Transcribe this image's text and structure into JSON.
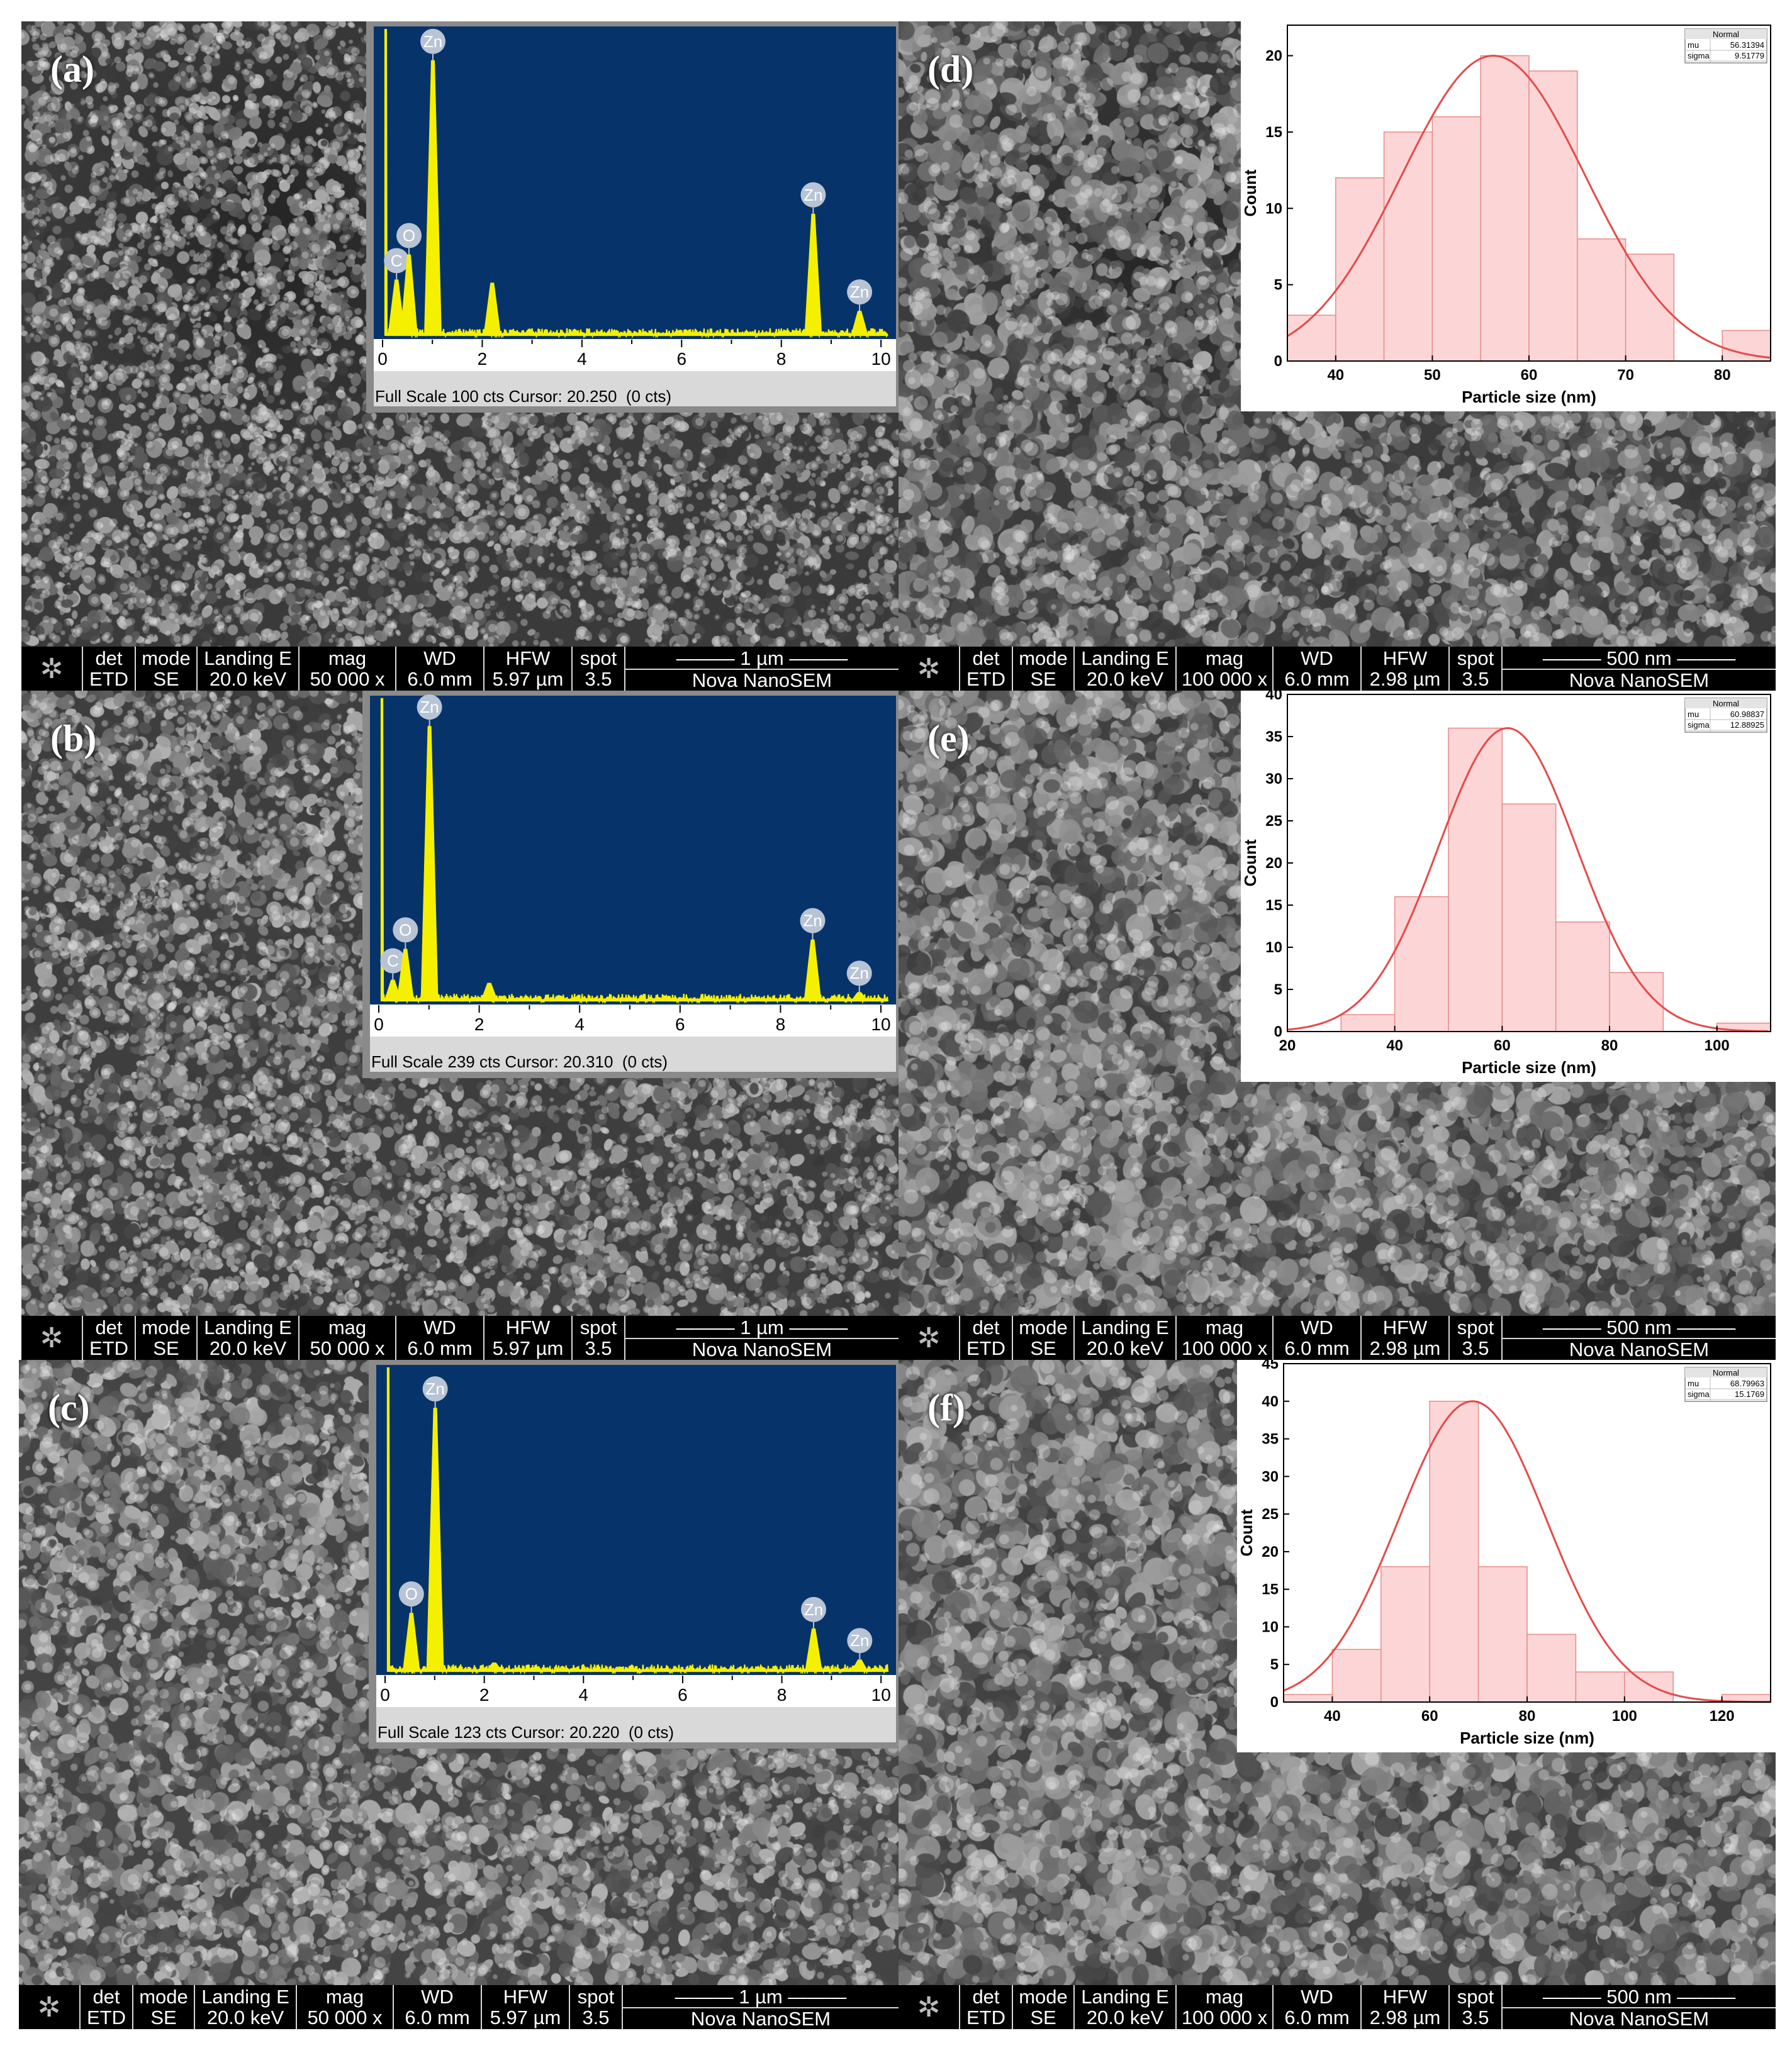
{
  "panels": [
    {
      "label": "(a)",
      "texture": {
        "seed": 3,
        "tone": 98,
        "grain": 9,
        "dark_blob": true
      },
      "infobar": {
        "det": "ETD",
        "mode": "SE",
        "landing": "20.0 keV",
        "mag": "50 000 x",
        "wd": "6.0 mm",
        "hfw": "5.97 µm",
        "spot": "3.5",
        "scale": "1 µm",
        "instrument": "Nova NanoSEM"
      },
      "eds": {
        "footer": "Full Scale 100 cts Cursor: 20.250  (0 cts)",
        "peaks": [
          {
            "element": "C",
            "kev": 0.28,
            "height": 0.18
          },
          {
            "element": "O",
            "kev": 0.53,
            "height": 0.26
          },
          {
            "element": "Zn",
            "kev": 1.01,
            "height": 0.88
          },
          {
            "element": "",
            "kev": 2.2,
            "height": 0.17
          },
          {
            "element": "Zn",
            "kev": 8.64,
            "height": 0.39
          },
          {
            "element": "Zn",
            "kev": 9.57,
            "height": 0.08
          }
        ],
        "x_ticks": [
          "0",
          "2",
          "4",
          "6",
          "8",
          "10"
        ]
      }
    },
    {
      "label": "(b)",
      "texture": {
        "seed": 11,
        "tone": 102,
        "grain": 10,
        "dark_blob": false
      },
      "infobar": {
        "det": "ETD",
        "mode": "SE",
        "landing": "20.0 keV",
        "mag": "50 000 x",
        "wd": "6.0 mm",
        "hfw": "5.97 µm",
        "spot": "3.5",
        "scale": "1 µm",
        "instrument": "Nova NanoSEM"
      },
      "eds": {
        "footer": "Full Scale 239 cts Cursor: 20.310  (0 cts)",
        "peaks": [
          {
            "element": "C",
            "kev": 0.28,
            "height": 0.07
          },
          {
            "element": "O",
            "kev": 0.53,
            "height": 0.17
          },
          {
            "element": "Zn",
            "kev": 1.01,
            "height": 0.89
          },
          {
            "element": "",
            "kev": 2.2,
            "height": 0.06
          },
          {
            "element": "Zn",
            "kev": 8.64,
            "height": 0.2
          },
          {
            "element": "Zn",
            "kev": 9.57,
            "height": 0.03
          }
        ],
        "x_ticks": [
          "0",
          "2",
          "4",
          "6",
          "8",
          "10"
        ]
      }
    },
    {
      "label": "(c)",
      "texture": {
        "seed": 23,
        "tone": 108,
        "grain": 12,
        "dark_blob": false
      },
      "infobar": {
        "det": "ETD",
        "mode": "SE",
        "landing": "20.0 keV",
        "mag": "50 000 x",
        "wd": "6.0 mm",
        "hfw": "5.97 µm",
        "spot": "3.5",
        "scale": "1 µm",
        "instrument": "Nova NanoSEM"
      },
      "eds": {
        "footer": "Full Scale 123 cts Cursor: 20.220  (0 cts)",
        "peaks": [
          {
            "element": "O",
            "kev": 0.53,
            "height": 0.19
          },
          {
            "element": "Zn",
            "kev": 1.01,
            "height": 0.85
          },
          {
            "element": "",
            "kev": 2.2,
            "height": 0.03
          },
          {
            "element": "Zn",
            "kev": 8.64,
            "height": 0.14
          },
          {
            "element": "Zn",
            "kev": 9.57,
            "height": 0.04
          }
        ],
        "x_ticks": [
          "0",
          "2",
          "4",
          "6",
          "8",
          "10"
        ]
      }
    },
    {
      "label": "(d)",
      "texture": {
        "seed": 37,
        "tone": 100,
        "grain": 14,
        "dark_blob": true
      },
      "infobar": {
        "det": "ETD",
        "mode": "SE",
        "landing": "20.0 keV",
        "mag": "100 000 x",
        "wd": "6.0 mm",
        "hfw": "2.98 µm",
        "spot": "3.5",
        "scale": "500 nm",
        "instrument": "Nova NanoSEM"
      }
    },
    {
      "label": "(e)",
      "texture": {
        "seed": 41,
        "tone": 104,
        "grain": 15,
        "dark_blob": false
      },
      "infobar": {
        "det": "ETD",
        "mode": "SE",
        "landing": "20.0 keV",
        "mag": "100 000 x",
        "wd": "6.0 mm",
        "hfw": "2.98 µm",
        "spot": "3.5",
        "scale": "500 nm",
        "instrument": "Nova NanoSEM"
      }
    },
    {
      "label": "(f)",
      "texture": {
        "seed": 53,
        "tone": 106,
        "grain": 16,
        "dark_blob": false
      },
      "infobar": {
        "det": "ETD",
        "mode": "SE",
        "landing": "20.0 keV",
        "mag": "100 000 x",
        "wd": "6.0 mm",
        "hfw": "2.98 µm",
        "spot": "3.5",
        "scale": "500 nm",
        "instrument": "Nova NanoSEM"
      }
    }
  ],
  "infobar_headers": {
    "det": "det",
    "mode": "mode",
    "landing": "Landing E",
    "mag": "mag",
    "wd": "WD",
    "hfw": "HFW",
    "spot": "spot"
  },
  "chart_data": [
    {
      "type": "bar",
      "panel": "(d)",
      "xlabel": "Particle size (nm)",
      "ylabel": "Count",
      "xlim": [
        35,
        85
      ],
      "ylim": [
        0,
        22
      ],
      "x_ticks": [
        40,
        50,
        60,
        70,
        80
      ],
      "y_ticks": [
        0,
        5,
        10,
        15,
        20
      ],
      "bin_edges": [
        35,
        40,
        45,
        50,
        55,
        60,
        65,
        70,
        75,
        80,
        85
      ],
      "counts": [
        3,
        12,
        15,
        16,
        20,
        19,
        8,
        7,
        0,
        2
      ],
      "fit": {
        "name": "Normal",
        "mu": "56.31394",
        "sigma": "9.51779",
        "mu_value": 56.31394,
        "sigma_value": 9.51779,
        "peak": 20
      },
      "legend": {
        "title": "Normal",
        "rows": [
          [
            "mu",
            "56.31394"
          ],
          [
            "sigma",
            "9.51779"
          ]
        ],
        "position": "top-right"
      },
      "colors": {
        "bar_fill": "#fcd6d6",
        "bar_edge": "#e88a8a",
        "fit": "#e84848"
      }
    },
    {
      "type": "bar",
      "panel": "(e)",
      "xlabel": "Particle size (nm)",
      "ylabel": "Count",
      "xlim": [
        20,
        110
      ],
      "ylim": [
        0,
        40
      ],
      "x_ticks": [
        20,
        40,
        60,
        80,
        100
      ],
      "y_ticks": [
        0,
        5,
        10,
        15,
        20,
        25,
        30,
        35,
        40
      ],
      "bin_edges": [
        20,
        30,
        40,
        50,
        60,
        70,
        80,
        90,
        100,
        110
      ],
      "counts": [
        0,
        2,
        16,
        36,
        27,
        13,
        7,
        0,
        1
      ],
      "fit": {
        "name": "Normal",
        "mu": "60.98837",
        "sigma": "12.88925",
        "mu_value": 60.98837,
        "sigma_value": 12.88925,
        "peak": 36
      },
      "legend": {
        "title": "Normal",
        "rows": [
          [
            "mu",
            "60.98837"
          ],
          [
            "sigma",
            "12.88925"
          ]
        ],
        "position": "top-right"
      },
      "colors": {
        "bar_fill": "#fcd6d6",
        "bar_edge": "#e88a8a",
        "fit": "#e84848"
      }
    },
    {
      "type": "bar",
      "panel": "(f)",
      "xlabel": "Particle size (nm)",
      "ylabel": "Count",
      "xlim": [
        30,
        130
      ],
      "ylim": [
        0,
        45
      ],
      "x_ticks": [
        40,
        60,
        80,
        100,
        120
      ],
      "y_ticks": [
        0,
        5,
        10,
        15,
        20,
        25,
        30,
        35,
        40,
        45
      ],
      "bin_edges": [
        30,
        40,
        50,
        60,
        70,
        80,
        90,
        100,
        110,
        120,
        130
      ],
      "counts": [
        1,
        7,
        18,
        40,
        18,
        9,
        4,
        4,
        0,
        1
      ],
      "fit": {
        "name": "Normal",
        "mu": "68.79963",
        "sigma": "15.1769",
        "mu_value": 68.79963,
        "sigma_value": 15.1769,
        "peak": 40
      },
      "legend": {
        "title": "Normal",
        "rows": [
          [
            "mu",
            "68.79963"
          ],
          [
            "sigma",
            "15.1769"
          ]
        ],
        "position": "top-right"
      },
      "colors": {
        "bar_fill": "#fcd6d6",
        "bar_edge": "#e88a8a",
        "fit": "#e84848"
      }
    }
  ],
  "colors": {
    "eds_background": "#06336a",
    "eds_spectrum": "#f5f000",
    "eds_frame": "#8a8a8a",
    "peak_marker": "#b8c4d4",
    "infobar": "#000000"
  }
}
